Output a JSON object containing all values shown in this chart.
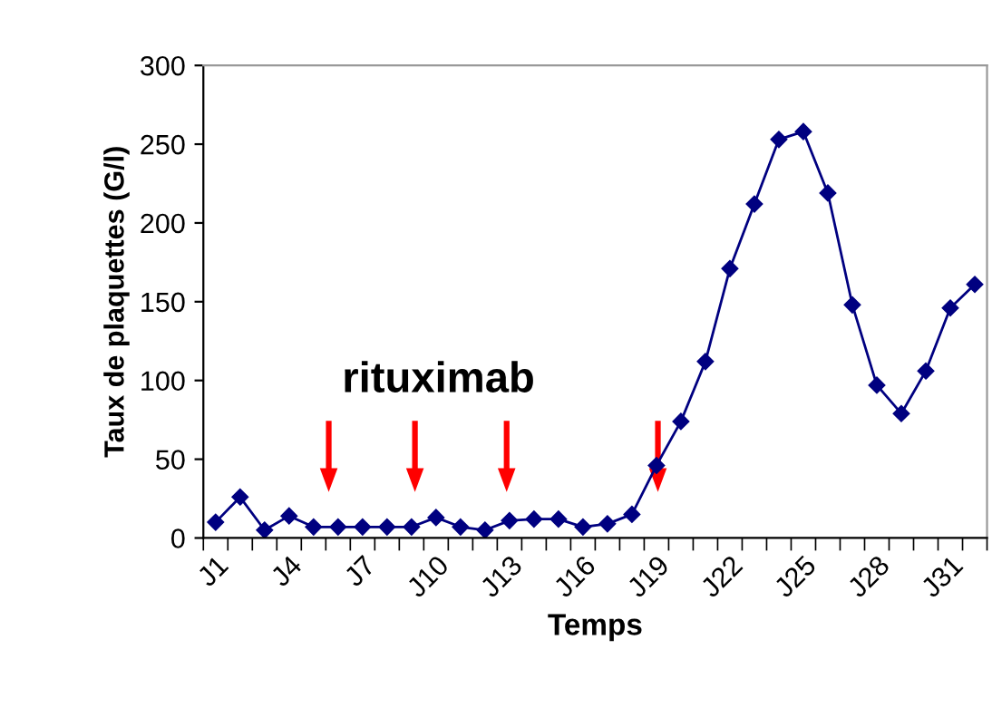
{
  "chart_data": {
    "type": "line",
    "xlabel": "Temps",
    "ylabel": "Taux de plaquettes (G/l)",
    "categories": [
      "J1",
      null,
      null,
      "J4",
      null,
      null,
      "J7",
      null,
      null,
      "J10",
      null,
      null,
      "J13",
      null,
      null,
      "J16",
      null,
      null,
      "J19",
      null,
      null,
      "J22",
      null,
      null,
      "J25",
      null,
      null,
      "J28",
      null,
      null,
      "J31",
      null
    ],
    "series": [
      {
        "color": "#000080",
        "values": [
          10,
          26,
          5,
          14,
          7,
          7,
          7,
          7,
          7,
          13,
          7,
          5,
          11,
          12,
          12,
          7,
          9,
          15,
          46,
          74,
          112,
          171,
          212,
          253,
          258,
          219,
          148,
          97,
          79,
          106,
          146,
          161
        ]
      }
    ],
    "ylim": [
      0,
      300
    ],
    "yticks": [
      0,
      50,
      100,
      150,
      200,
      250,
      300
    ],
    "marker": "diamond",
    "grid": false,
    "legend": false,
    "annotations": [
      "rituximab"
    ]
  }
}
